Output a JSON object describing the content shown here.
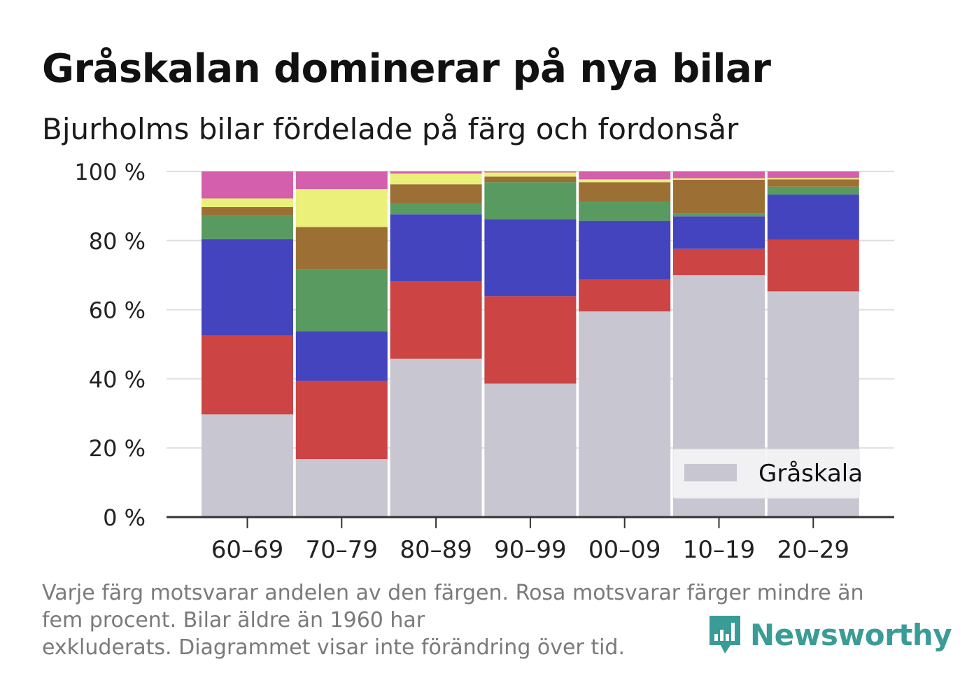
{
  "header": {
    "title": "Gråskalan dominerar på nya bilar",
    "subtitle": "Bjurholms bilar fördelade på färg och fordonsår"
  },
  "footnote": {
    "lines": [
      "Varje färg motsvarar andelen av den färgen. Rosa motsvarar färger mindre än",
      "fem procent. Bilar äldre än 1960 har",
      "exkluderats. Diagrammet visar inte förändring över tid."
    ]
  },
  "brand": {
    "name": "Newsworthy",
    "icon": "bar-chart-speech-bubble-icon",
    "color": "#3a9c96"
  },
  "chart_data": {
    "type": "bar",
    "stacked": true,
    "categories": [
      "60–69",
      "70–79",
      "80–89",
      "90–99",
      "00–09",
      "10–19",
      "20–29"
    ],
    "ylim": [
      0,
      100
    ],
    "yticks": [
      0,
      20,
      40,
      60,
      80,
      100
    ],
    "ytick_labels": [
      "0 %",
      "20 %",
      "40 %",
      "60 %",
      "80 %",
      "100 %"
    ],
    "grid": true,
    "legend_position": "bottom-right",
    "series": [
      {
        "name": "Gråskala",
        "color": "#c8c6d0",
        "values": [
          29.7,
          16.8,
          45.8,
          38.6,
          59.5,
          70.0,
          65.3
        ]
      },
      {
        "color": "#cc4444",
        "values": [
          22.8,
          22.6,
          22.4,
          25.3,
          9.2,
          7.6,
          14.9
        ]
      },
      {
        "color": "#4444bf",
        "values": [
          27.9,
          14.4,
          19.4,
          22.3,
          17.0,
          9.4,
          13.1
        ]
      },
      {
        "color": "#599a60",
        "values": [
          6.8,
          17.8,
          3.1,
          10.7,
          5.6,
          0.8,
          2.3
        ]
      },
      {
        "color": "#9c7035",
        "values": [
          2.5,
          12.3,
          5.6,
          1.6,
          5.6,
          9.8,
          2.1
        ]
      },
      {
        "color": "#eaf07a",
        "values": [
          2.5,
          11.0,
          3.1,
          1.2,
          0.8,
          0.4,
          0.4
        ]
      },
      {
        "color": "#d45fad",
        "values": [
          7.8,
          5.1,
          0.6,
          0.3,
          2.3,
          2.0,
          1.9
        ]
      }
    ]
  }
}
